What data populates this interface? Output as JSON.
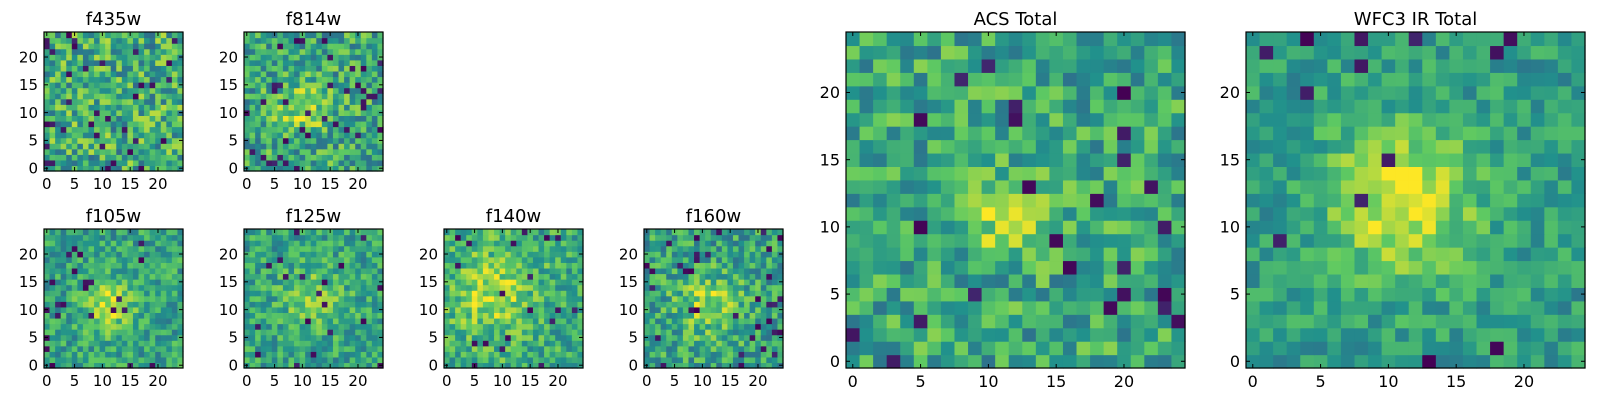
{
  "figure": {
    "colormap": "viridis",
    "value_range": [
      0,
      1
    ],
    "colormap_stops": [
      "#440154",
      "#3b528b",
      "#21918c",
      "#5ec962",
      "#fde725"
    ]
  },
  "chart_data": [
    {
      "type": "heatmap",
      "title": "f435w",
      "grid": [
        25,
        25
      ],
      "xlim": [
        0,
        24
      ],
      "ylim": [
        0,
        24
      ],
      "xticks": [
        "0",
        "5",
        "10",
        "15",
        "20"
      ],
      "yticks": [
        "0",
        "5",
        "10",
        "15",
        "20"
      ],
      "seed": 11,
      "blobs": [],
      "noise": 1.0,
      "base": 0.62,
      "dark_fraction": 0.05
    },
    {
      "type": "heatmap",
      "title": "f814w",
      "grid": [
        25,
        25
      ],
      "xlim": [
        0,
        24
      ],
      "ylim": [
        0,
        24
      ],
      "xticks": [
        "0",
        "5",
        "10",
        "15",
        "20"
      ],
      "yticks": [
        "0",
        "5",
        "10",
        "15",
        "20"
      ],
      "seed": 23,
      "blobs": [
        {
          "x": 10,
          "y": 11,
          "r": 3,
          "amp": 0.3
        }
      ],
      "noise": 0.9,
      "base": 0.6,
      "dark_fraction": 0.05
    },
    {
      "type": "heatmap",
      "title": "f105w",
      "grid": [
        25,
        25
      ],
      "xlim": [
        0,
        24
      ],
      "ylim": [
        0,
        24
      ],
      "xticks": [
        "0",
        "5",
        "10",
        "15",
        "20"
      ],
      "yticks": [
        "0",
        "5",
        "10",
        "15",
        "20"
      ],
      "seed": 37,
      "blobs": [
        {
          "x": 11,
          "y": 11,
          "r": 3,
          "amp": 0.35
        }
      ],
      "noise": 0.7,
      "base": 0.58,
      "dark_fraction": 0.04
    },
    {
      "type": "heatmap",
      "title": "f125w",
      "grid": [
        25,
        25
      ],
      "xlim": [
        0,
        24
      ],
      "ylim": [
        0,
        24
      ],
      "xticks": [
        "0",
        "5",
        "10",
        "15",
        "20"
      ],
      "yticks": [
        "0",
        "5",
        "10",
        "15",
        "20"
      ],
      "seed": 41,
      "blobs": [
        {
          "x": 12,
          "y": 12,
          "r": 4,
          "amp": 0.2
        }
      ],
      "noise": 0.7,
      "base": 0.58,
      "dark_fraction": 0.03
    },
    {
      "type": "heatmap",
      "title": "f140w",
      "grid": [
        25,
        25
      ],
      "xlim": [
        0,
        24
      ],
      "ylim": [
        0,
        24
      ],
      "xticks": [
        "0",
        "5",
        "10",
        "15",
        "20"
      ],
      "yticks": [
        "0",
        "5",
        "10",
        "15",
        "20"
      ],
      "seed": 53,
      "blobs": [
        {
          "x": 8,
          "y": 13,
          "r": 5,
          "amp": 0.25
        }
      ],
      "noise": 0.75,
      "base": 0.62,
      "dark_fraction": 0.04
    },
    {
      "type": "heatmap",
      "title": "f160w",
      "grid": [
        25,
        25
      ],
      "xlim": [
        0,
        24
      ],
      "ylim": [
        0,
        24
      ],
      "xticks": [
        "0",
        "5",
        "10",
        "15",
        "20"
      ],
      "yticks": [
        "0",
        "5",
        "10",
        "15",
        "20"
      ],
      "seed": 67,
      "blobs": [
        {
          "x": 11,
          "y": 11,
          "r": 4,
          "amp": 0.25
        }
      ],
      "noise": 0.8,
      "base": 0.58,
      "dark_fraction": 0.05
    },
    {
      "type": "heatmap",
      "title": "ACS Total",
      "grid": [
        25,
        25
      ],
      "xlim": [
        0,
        24
      ],
      "ylim": [
        0,
        24
      ],
      "xticks": [
        "0",
        "5",
        "10",
        "15",
        "20"
      ],
      "yticks": [
        "0",
        "5",
        "10",
        "15",
        "20"
      ],
      "seed": 79,
      "blobs": [
        {
          "x": 11,
          "y": 11,
          "r": 2,
          "amp": 0.3
        }
      ],
      "noise": 0.8,
      "base": 0.6,
      "dark_fraction": 0.04
    },
    {
      "type": "heatmap",
      "title": "WFC3 IR Total",
      "grid": [
        25,
        25
      ],
      "xlim": [
        0,
        24
      ],
      "ylim": [
        0,
        24
      ],
      "xticks": [
        "0",
        "5",
        "10",
        "15",
        "20"
      ],
      "yticks": [
        "0",
        "5",
        "10",
        "15",
        "20"
      ],
      "seed": 97,
      "blobs": [
        {
          "x": 11,
          "y": 12,
          "r": 4,
          "amp": 0.4
        }
      ],
      "noise": 0.55,
      "base": 0.55,
      "dark_fraction": 0.03
    }
  ]
}
